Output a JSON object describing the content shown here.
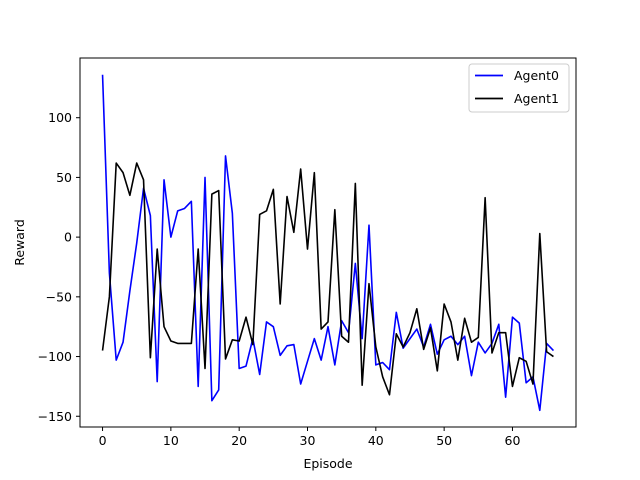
{
  "chart_data": {
    "type": "line",
    "title": "",
    "xlabel": "Episode",
    "ylabel": "Reward",
    "xlim": [
      -3.3,
      69.3
    ],
    "ylim": [
      -159,
      150
    ],
    "xticks": [
      0,
      10,
      20,
      30,
      40,
      50,
      60
    ],
    "yticks": [
      -150,
      -100,
      -50,
      0,
      50,
      100
    ],
    "grid": false,
    "legend_position": "top-right",
    "series": [
      {
        "name": "Agent0",
        "color": "#0000ff",
        "x": [
          0,
          1,
          2,
          3,
          4,
          5,
          6,
          7,
          8,
          9,
          10,
          11,
          12,
          13,
          14,
          15,
          16,
          17,
          18,
          19,
          20,
          21,
          22,
          23,
          24,
          25,
          26,
          27,
          28,
          29,
          30,
          31,
          32,
          33,
          34,
          35,
          36,
          37,
          38,
          39,
          40,
          41,
          42,
          43,
          44,
          45,
          46,
          47,
          48,
          49,
          50,
          51,
          52,
          53,
          54,
          55,
          56,
          57,
          58,
          59,
          60,
          61,
          62,
          63,
          64,
          65,
          66
        ],
        "values": [
          136,
          -30,
          -103,
          -88,
          -45,
          -5,
          41,
          18,
          -121,
          48,
          0,
          22,
          24,
          30,
          -125,
          50,
          -137,
          -128,
          68,
          20,
          -110,
          -108,
          -85,
          -115,
          -71,
          -75,
          -99,
          -91,
          -90,
          -123,
          -104,
          -85,
          -103,
          -75,
          -107,
          -70,
          -80,
          -22,
          -85,
          10,
          -107,
          -105,
          -111,
          -63,
          -93,
          -85,
          -77,
          -92,
          -73,
          -98,
          -86,
          -83,
          -90,
          -83,
          -116,
          -88,
          -97,
          -89,
          -73,
          -134,
          -67,
          -72,
          -122,
          -117,
          -145,
          -89,
          -95
        ]
      },
      {
        "name": "Agent1",
        "color": "#000000",
        "x": [
          0,
          1,
          2,
          3,
          4,
          5,
          6,
          7,
          8,
          9,
          10,
          11,
          12,
          13,
          14,
          15,
          16,
          17,
          18,
          19,
          20,
          21,
          22,
          23,
          24,
          25,
          26,
          27,
          28,
          29,
          30,
          31,
          32,
          33,
          34,
          35,
          36,
          37,
          38,
          39,
          40,
          41,
          42,
          43,
          44,
          45,
          46,
          47,
          48,
          49,
          50,
          51,
          52,
          53,
          54,
          55,
          56,
          57,
          58,
          59,
          60,
          61,
          62,
          63,
          64,
          65,
          66
        ],
        "values": [
          -95,
          -50,
          62,
          54,
          35,
          62,
          48,
          -101,
          -10,
          -75,
          -87,
          -89,
          -89,
          -89,
          -10,
          -110,
          36,
          39,
          -102,
          -86,
          -87,
          -67,
          -90,
          19,
          22,
          40,
          -56,
          34,
          4,
          57,
          -10,
          54,
          -77,
          -71,
          23,
          -83,
          -88,
          45,
          -124,
          -39,
          -92,
          -117,
          -132,
          -81,
          -92,
          -80,
          -60,
          -94,
          -76,
          -112,
          -56,
          -71,
          -103,
          -68,
          -88,
          -84,
          33,
          -97,
          -80,
          -80,
          -125,
          -101,
          -104,
          -123,
          3,
          -96,
          -100
        ]
      }
    ]
  }
}
